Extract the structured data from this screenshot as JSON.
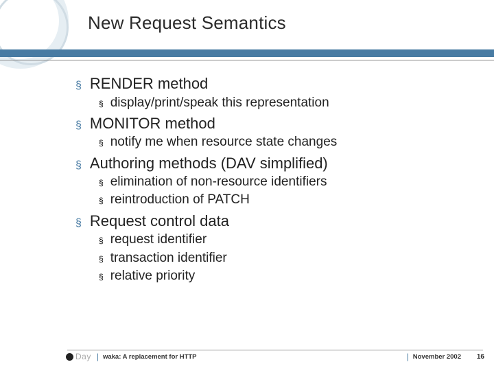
{
  "title": "New Request Semantics",
  "colors": {
    "accent": "#487ba3",
    "bullet_main": "#487ba3",
    "bullet_sub": "#000000",
    "text": "#222222",
    "ring_light": "#e6eef3",
    "ring_dark": "#d0dce4",
    "footer_line": "#999999",
    "logo_gray": "#aaaaaa"
  },
  "typography": {
    "title_fontsize": 26,
    "lvl1_fontsize": 22,
    "lvl2_fontsize": 19,
    "footer_title_fontsize": 9.5,
    "footer_page_fontsize": 10,
    "font_family": "Verdana"
  },
  "bullets": [
    {
      "label": "RENDER method",
      "children": [
        "display/print/speak this representation"
      ]
    },
    {
      "label": "MONITOR method",
      "children": [
        "notify me when resource state changes"
      ]
    },
    {
      "label": "Authoring methods (DAV simplified)",
      "children": [
        "elimination of non-resource identifiers",
        "reintroduction of PATCH"
      ]
    },
    {
      "label": "Request control data",
      "children": [
        "request identifier",
        "transaction identifier",
        "relative priority"
      ]
    }
  ],
  "footer": {
    "logo_text": "Day",
    "separator": "|",
    "talk_title": "waka: A replacement for HTTP",
    "date": "November 2002",
    "page": "16"
  }
}
